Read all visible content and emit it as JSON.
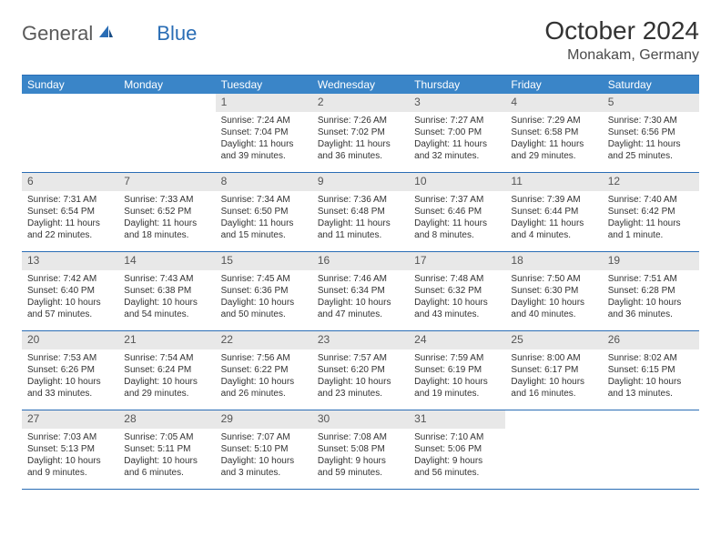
{
  "brand": {
    "part1": "General",
    "part2": "Blue"
  },
  "title": "October 2024",
  "location": "Monakam, Germany",
  "colors": {
    "header_bg": "#3a85c8",
    "border": "#2a6db5",
    "daynum_bg": "#e8e8e8",
    "text": "#333333",
    "logo_gray": "#5a5a5a",
    "logo_blue": "#2a6db5",
    "background": "#ffffff"
  },
  "days_of_week": [
    "Sunday",
    "Monday",
    "Tuesday",
    "Wednesday",
    "Thursday",
    "Friday",
    "Saturday"
  ],
  "weeks": [
    [
      null,
      null,
      {
        "n": "1",
        "sr": "Sunrise: 7:24 AM",
        "ss": "Sunset: 7:04 PM",
        "d1": "Daylight: 11 hours",
        "d2": "and 39 minutes."
      },
      {
        "n": "2",
        "sr": "Sunrise: 7:26 AM",
        "ss": "Sunset: 7:02 PM",
        "d1": "Daylight: 11 hours",
        "d2": "and 36 minutes."
      },
      {
        "n": "3",
        "sr": "Sunrise: 7:27 AM",
        "ss": "Sunset: 7:00 PM",
        "d1": "Daylight: 11 hours",
        "d2": "and 32 minutes."
      },
      {
        "n": "4",
        "sr": "Sunrise: 7:29 AM",
        "ss": "Sunset: 6:58 PM",
        "d1": "Daylight: 11 hours",
        "d2": "and 29 minutes."
      },
      {
        "n": "5",
        "sr": "Sunrise: 7:30 AM",
        "ss": "Sunset: 6:56 PM",
        "d1": "Daylight: 11 hours",
        "d2": "and 25 minutes."
      }
    ],
    [
      {
        "n": "6",
        "sr": "Sunrise: 7:31 AM",
        "ss": "Sunset: 6:54 PM",
        "d1": "Daylight: 11 hours",
        "d2": "and 22 minutes."
      },
      {
        "n": "7",
        "sr": "Sunrise: 7:33 AM",
        "ss": "Sunset: 6:52 PM",
        "d1": "Daylight: 11 hours",
        "d2": "and 18 minutes."
      },
      {
        "n": "8",
        "sr": "Sunrise: 7:34 AM",
        "ss": "Sunset: 6:50 PM",
        "d1": "Daylight: 11 hours",
        "d2": "and 15 minutes."
      },
      {
        "n": "9",
        "sr": "Sunrise: 7:36 AM",
        "ss": "Sunset: 6:48 PM",
        "d1": "Daylight: 11 hours",
        "d2": "and 11 minutes."
      },
      {
        "n": "10",
        "sr": "Sunrise: 7:37 AM",
        "ss": "Sunset: 6:46 PM",
        "d1": "Daylight: 11 hours",
        "d2": "and 8 minutes."
      },
      {
        "n": "11",
        "sr": "Sunrise: 7:39 AM",
        "ss": "Sunset: 6:44 PM",
        "d1": "Daylight: 11 hours",
        "d2": "and 4 minutes."
      },
      {
        "n": "12",
        "sr": "Sunrise: 7:40 AM",
        "ss": "Sunset: 6:42 PM",
        "d1": "Daylight: 11 hours",
        "d2": "and 1 minute."
      }
    ],
    [
      {
        "n": "13",
        "sr": "Sunrise: 7:42 AM",
        "ss": "Sunset: 6:40 PM",
        "d1": "Daylight: 10 hours",
        "d2": "and 57 minutes."
      },
      {
        "n": "14",
        "sr": "Sunrise: 7:43 AM",
        "ss": "Sunset: 6:38 PM",
        "d1": "Daylight: 10 hours",
        "d2": "and 54 minutes."
      },
      {
        "n": "15",
        "sr": "Sunrise: 7:45 AM",
        "ss": "Sunset: 6:36 PM",
        "d1": "Daylight: 10 hours",
        "d2": "and 50 minutes."
      },
      {
        "n": "16",
        "sr": "Sunrise: 7:46 AM",
        "ss": "Sunset: 6:34 PM",
        "d1": "Daylight: 10 hours",
        "d2": "and 47 minutes."
      },
      {
        "n": "17",
        "sr": "Sunrise: 7:48 AM",
        "ss": "Sunset: 6:32 PM",
        "d1": "Daylight: 10 hours",
        "d2": "and 43 minutes."
      },
      {
        "n": "18",
        "sr": "Sunrise: 7:50 AM",
        "ss": "Sunset: 6:30 PM",
        "d1": "Daylight: 10 hours",
        "d2": "and 40 minutes."
      },
      {
        "n": "19",
        "sr": "Sunrise: 7:51 AM",
        "ss": "Sunset: 6:28 PM",
        "d1": "Daylight: 10 hours",
        "d2": "and 36 minutes."
      }
    ],
    [
      {
        "n": "20",
        "sr": "Sunrise: 7:53 AM",
        "ss": "Sunset: 6:26 PM",
        "d1": "Daylight: 10 hours",
        "d2": "and 33 minutes."
      },
      {
        "n": "21",
        "sr": "Sunrise: 7:54 AM",
        "ss": "Sunset: 6:24 PM",
        "d1": "Daylight: 10 hours",
        "d2": "and 29 minutes."
      },
      {
        "n": "22",
        "sr": "Sunrise: 7:56 AM",
        "ss": "Sunset: 6:22 PM",
        "d1": "Daylight: 10 hours",
        "d2": "and 26 minutes."
      },
      {
        "n": "23",
        "sr": "Sunrise: 7:57 AM",
        "ss": "Sunset: 6:20 PM",
        "d1": "Daylight: 10 hours",
        "d2": "and 23 minutes."
      },
      {
        "n": "24",
        "sr": "Sunrise: 7:59 AM",
        "ss": "Sunset: 6:19 PM",
        "d1": "Daylight: 10 hours",
        "d2": "and 19 minutes."
      },
      {
        "n": "25",
        "sr": "Sunrise: 8:00 AM",
        "ss": "Sunset: 6:17 PM",
        "d1": "Daylight: 10 hours",
        "d2": "and 16 minutes."
      },
      {
        "n": "26",
        "sr": "Sunrise: 8:02 AM",
        "ss": "Sunset: 6:15 PM",
        "d1": "Daylight: 10 hours",
        "d2": "and 13 minutes."
      }
    ],
    [
      {
        "n": "27",
        "sr": "Sunrise: 7:03 AM",
        "ss": "Sunset: 5:13 PM",
        "d1": "Daylight: 10 hours",
        "d2": "and 9 minutes."
      },
      {
        "n": "28",
        "sr": "Sunrise: 7:05 AM",
        "ss": "Sunset: 5:11 PM",
        "d1": "Daylight: 10 hours",
        "d2": "and 6 minutes."
      },
      {
        "n": "29",
        "sr": "Sunrise: 7:07 AM",
        "ss": "Sunset: 5:10 PM",
        "d1": "Daylight: 10 hours",
        "d2": "and 3 minutes."
      },
      {
        "n": "30",
        "sr": "Sunrise: 7:08 AM",
        "ss": "Sunset: 5:08 PM",
        "d1": "Daylight: 9 hours",
        "d2": "and 59 minutes."
      },
      {
        "n": "31",
        "sr": "Sunrise: 7:10 AM",
        "ss": "Sunset: 5:06 PM",
        "d1": "Daylight: 9 hours",
        "d2": "and 56 minutes."
      },
      null,
      null
    ]
  ]
}
